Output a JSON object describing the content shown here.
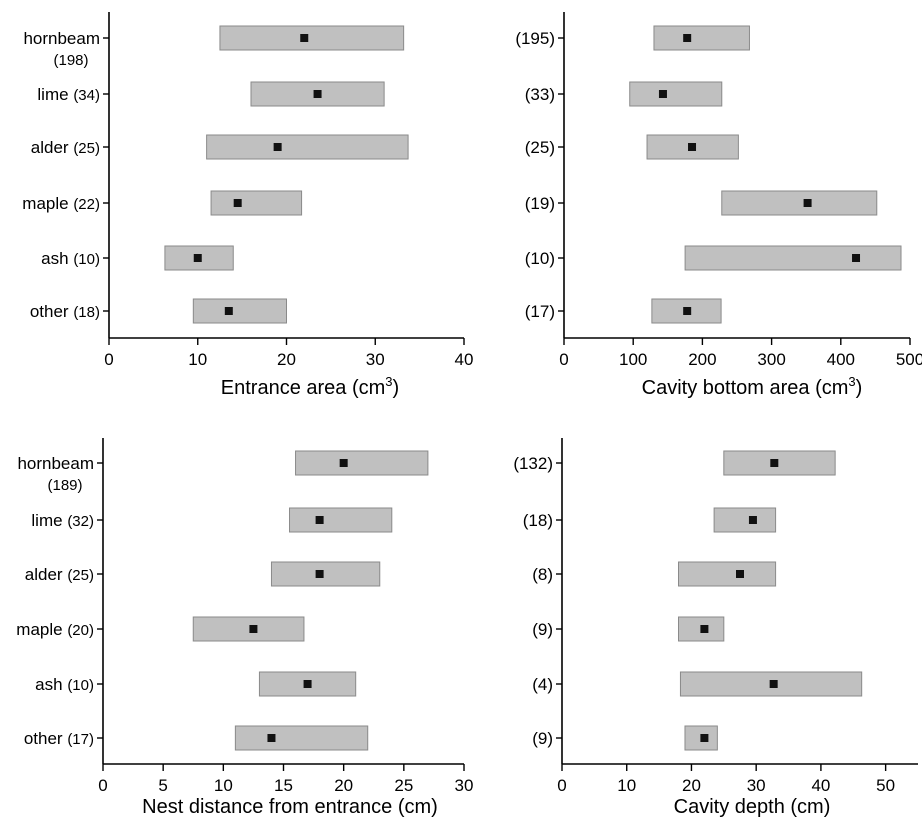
{
  "chart_data": [
    {
      "type": "range-bar",
      "xlabel": "Entrance area (cm",
      "xlabel_sup": "3",
      "xlabel_close": ")",
      "xlim": [
        0,
        40
      ],
      "xticks": [
        "0",
        "10",
        "20",
        "30",
        "40"
      ],
      "categories": [
        {
          "name": "hornbeam",
          "n": "(198)",
          "stacked": true
        },
        {
          "name": "lime",
          "n": "(34)"
        },
        {
          "name": "alder",
          "n": "(25)"
        },
        {
          "name": "maple",
          "n": "(22)"
        },
        {
          "name": "ash",
          "n": "(10)"
        },
        {
          "name": "other",
          "n": "(18)"
        }
      ],
      "low": [
        12.5,
        16,
        11,
        11.5,
        6.3,
        9.5
      ],
      "high": [
        33.2,
        31,
        33.7,
        21.7,
        14,
        20
      ],
      "mean": [
        22,
        23.5,
        19,
        14.5,
        10,
        13.5
      ]
    },
    {
      "type": "range-bar",
      "xlabel": "Cavity bottom area (cm",
      "xlabel_sup": "3",
      "xlabel_close": ")",
      "xlim": [
        0,
        500
      ],
      "xticks": [
        "0",
        "100",
        "200",
        "300",
        "400",
        "500"
      ],
      "categories": [
        {
          "name": "",
          "n": "(195)"
        },
        {
          "name": "",
          "n": "(33)"
        },
        {
          "name": "",
          "n": "(25)"
        },
        {
          "name": "",
          "n": "(19)"
        },
        {
          "name": "",
          "n": "(10)"
        },
        {
          "name": "",
          "n": "(17)"
        }
      ],
      "low": [
        130,
        95,
        120,
        228,
        175,
        127
      ],
      "high": [
        268,
        228,
        252,
        452,
        487,
        227
      ],
      "mean": [
        178,
        143,
        185,
        352,
        422,
        178
      ]
    },
    {
      "type": "range-bar",
      "xlabel": "Nest distance from entrance (cm)",
      "xlabel_sup": "",
      "xlabel_close": "",
      "xlim": [
        0,
        30
      ],
      "xticks": [
        "0",
        "5",
        "10",
        "15",
        "20",
        "25",
        "30"
      ],
      "categories": [
        {
          "name": "hornbeam",
          "n": "(189)",
          "stacked": true
        },
        {
          "name": "lime",
          "n": "(32)"
        },
        {
          "name": "alder",
          "n": "(25)"
        },
        {
          "name": "maple",
          "n": "(20)"
        },
        {
          "name": "ash",
          "n": "(10)"
        },
        {
          "name": "other",
          "n": "(17)"
        }
      ],
      "low": [
        16,
        15.5,
        14,
        7.5,
        13,
        11
      ],
      "high": [
        27,
        24,
        23,
        16.7,
        21,
        22
      ],
      "mean": [
        20,
        18,
        18,
        12.5,
        17,
        14
      ]
    },
    {
      "type": "range-bar",
      "xlabel": "Cavity depth (cm)",
      "xlabel_sup": "",
      "xlabel_close": "",
      "xlim": [
        0,
        55
      ],
      "xticks": [
        "0",
        "10",
        "20",
        "30",
        "40",
        "50"
      ],
      "categories": [
        {
          "name": "",
          "n": "(132)"
        },
        {
          "name": "",
          "n": "(18)"
        },
        {
          "name": "",
          "n": "(8)"
        },
        {
          "name": "",
          "n": "(9)"
        },
        {
          "name": "",
          "n": "(4)"
        },
        {
          "name": "",
          "n": "(9)"
        }
      ],
      "low": [
        25,
        23.5,
        18,
        18,
        18.3,
        19
      ],
      "high": [
        42.2,
        33,
        33,
        25,
        46.3,
        24
      ],
      "mean": [
        32.8,
        29.5,
        27.5,
        22,
        32.7,
        22
      ]
    }
  ]
}
